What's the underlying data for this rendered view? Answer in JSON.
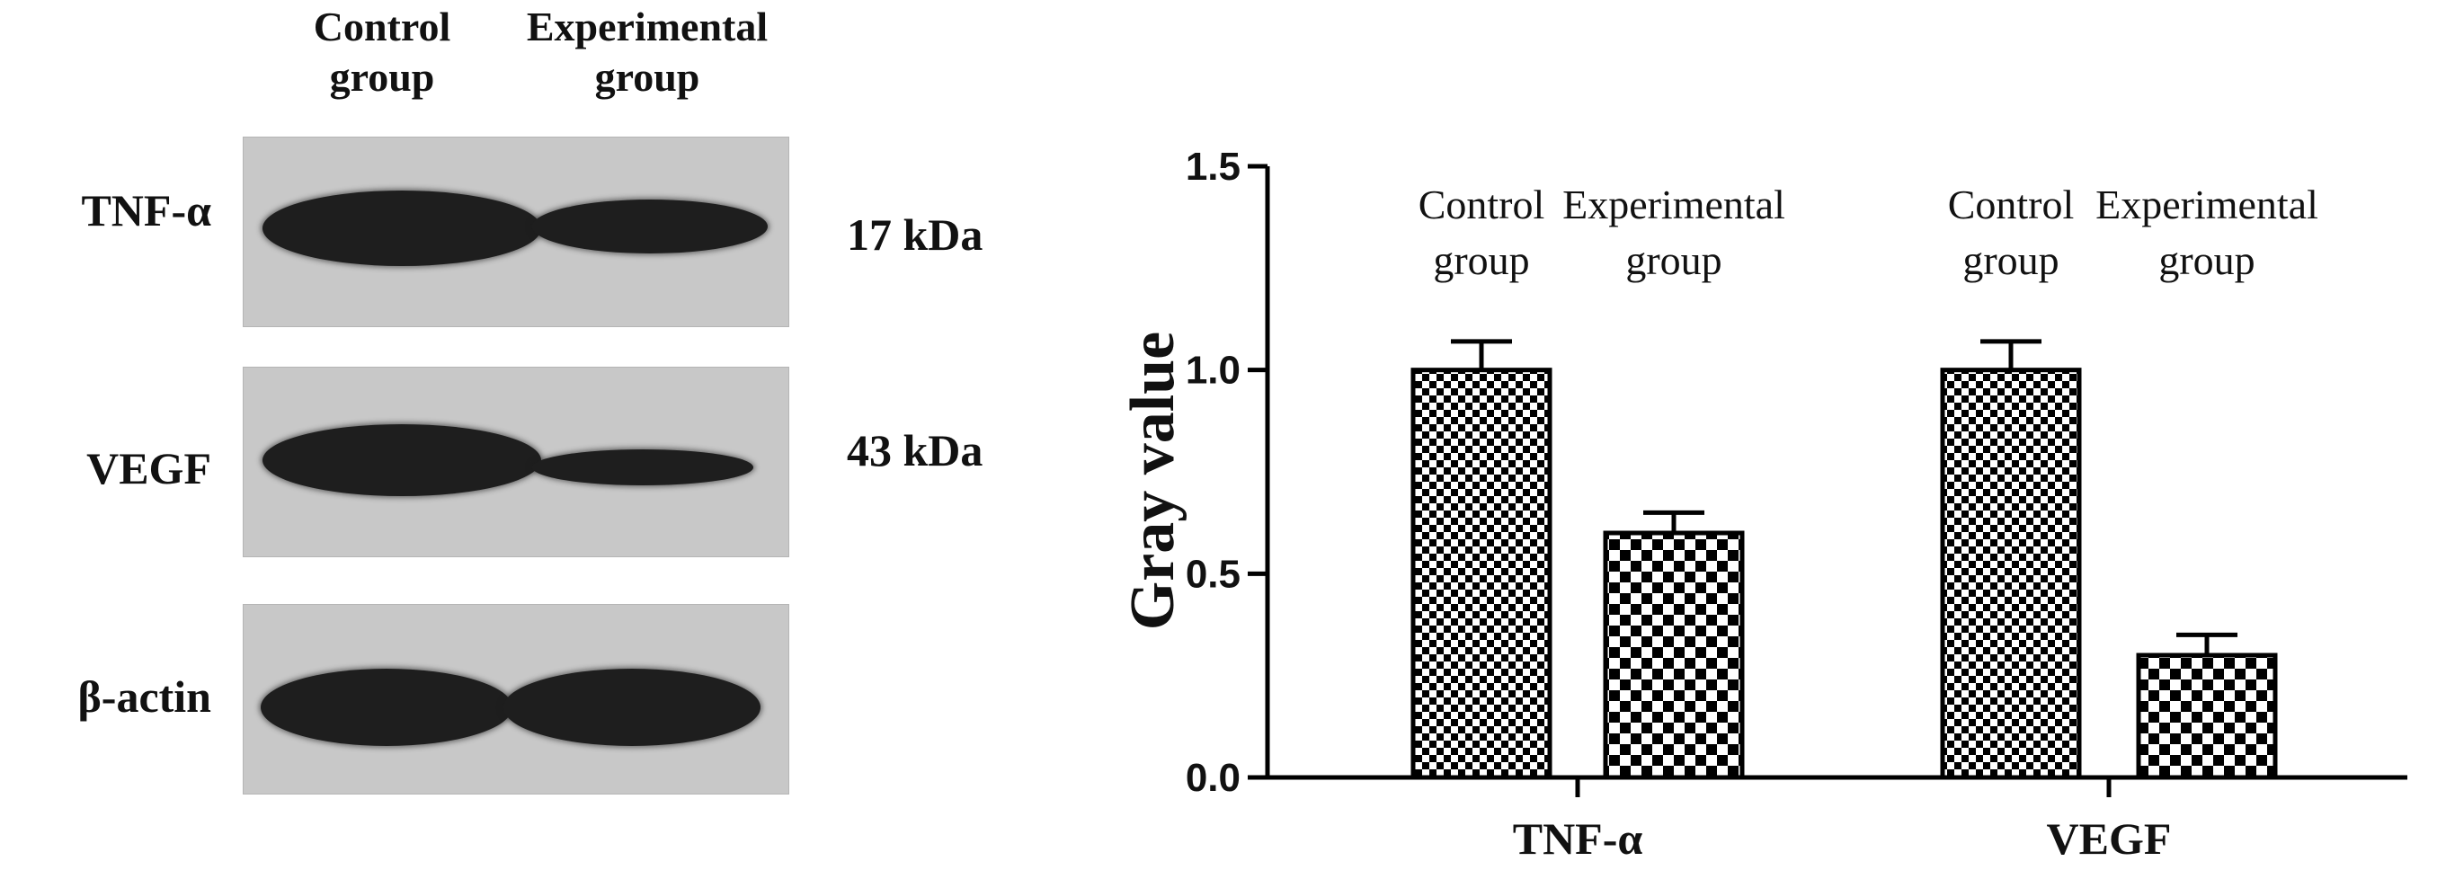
{
  "blot": {
    "column_headers": [
      {
        "line1": "Control",
        "line2": "group"
      },
      {
        "line1": "Experimental",
        "line2": "group"
      }
    ],
    "rows": [
      {
        "label": "TNF-α",
        "kda": "17 kDa"
      },
      {
        "label": "VEGF",
        "kda": "43 kDa"
      },
      {
        "label": "β-actin",
        "kda": ""
      }
    ]
  },
  "chart_data": {
    "type": "bar",
    "categories": [
      "TNF-α",
      "VEGF"
    ],
    "ylabel": "Gray value",
    "xlabel": "",
    "ylim": [
      0,
      1.5
    ],
    "yticks": [
      "0.0",
      "0.5",
      "1.0",
      "1.5"
    ],
    "series": [
      {
        "name": "Control group",
        "values": [
          1.0,
          1.0
        ],
        "errors": [
          0.07,
          0.07
        ],
        "pattern": "fine-checker"
      },
      {
        "name": "Experimental group",
        "values": [
          0.6,
          0.3
        ],
        "errors": [
          0.05,
          0.05
        ],
        "pattern": "coarse-checker"
      }
    ],
    "bar_labels": [
      {
        "line1": "Control",
        "line2": "group"
      },
      {
        "line1": "Experimental",
        "line2": "group"
      },
      {
        "line1": "Control",
        "line2": "group"
      },
      {
        "line1": "Experimental",
        "line2": "group"
      }
    ],
    "colors": {
      "bar_fill": "#000000",
      "bar_bg": "#ffffff",
      "axis": "#000000"
    }
  }
}
